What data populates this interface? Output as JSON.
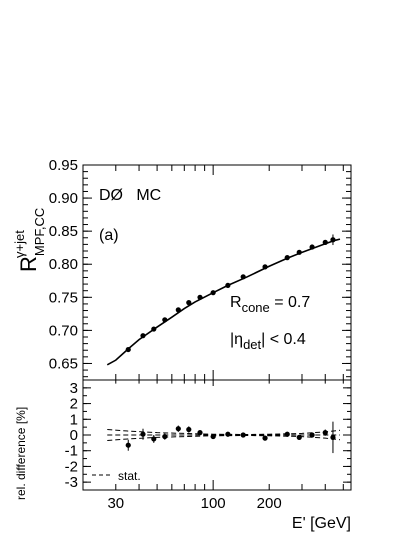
{
  "chart_data": [
    {
      "type": "scatter",
      "panel": "main",
      "x_scale": "log",
      "xlim": [
        20,
        550
      ],
      "ylim": [
        0.625,
        0.95
      ],
      "ylabel_main": "R",
      "ylabel_super": "γ+jet",
      "ylabel_sub": "MPF,CC",
      "yticks": [
        "0.65",
        "0.70",
        "0.75",
        "0.80",
        "0.85",
        "0.90",
        "0.95"
      ],
      "ytick_values": [
        0.65,
        0.7,
        0.75,
        0.8,
        0.85,
        0.9,
        0.95
      ],
      "annotations": {
        "experiment": "DØ   MC",
        "panel_label": "(a)",
        "rcone_main": "R",
        "rcone_sub": "cone",
        "rcone_value": " = 0.7",
        "eta_bar_left": "|",
        "eta_main": "η",
        "eta_sub": "det",
        "eta_value": "| < 0.4"
      },
      "points": [
        {
          "x": 35,
          "y": 0.671,
          "err": 0.003
        },
        {
          "x": 42,
          "y": 0.692,
          "err": 0.002
        },
        {
          "x": 48,
          "y": 0.702,
          "err": 0.002
        },
        {
          "x": 55,
          "y": 0.716,
          "err": 0.002
        },
        {
          "x": 65,
          "y": 0.731,
          "err": 0.002
        },
        {
          "x": 74,
          "y": 0.742,
          "err": 0.002
        },
        {
          "x": 85,
          "y": 0.75,
          "err": 0.002
        },
        {
          "x": 100,
          "y": 0.757,
          "err": 0.002
        },
        {
          "x": 120,
          "y": 0.768,
          "err": 0.002
        },
        {
          "x": 145,
          "y": 0.781,
          "err": 0.002
        },
        {
          "x": 190,
          "y": 0.796,
          "err": 0.002
        },
        {
          "x": 250,
          "y": 0.81,
          "err": 0.002
        },
        {
          "x": 290,
          "y": 0.818,
          "err": 0.002
        },
        {
          "x": 340,
          "y": 0.826,
          "err": 0.002
        },
        {
          "x": 400,
          "y": 0.833,
          "err": 0.003
        },
        {
          "x": 440,
          "y": 0.837,
          "err": 0.008
        }
      ],
      "fit_curve": {
        "x": [
          27,
          30,
          35,
          40,
          50,
          60,
          70,
          80,
          100,
          120,
          150,
          200,
          250,
          300,
          350,
          400,
          450,
          480
        ],
        "y": [
          0.648,
          0.655,
          0.672,
          0.686,
          0.705,
          0.72,
          0.733,
          0.743,
          0.757,
          0.768,
          0.78,
          0.797,
          0.809,
          0.818,
          0.825,
          0.831,
          0.836,
          0.838
        ]
      }
    },
    {
      "type": "scatter",
      "panel": "ratio",
      "x_scale": "log",
      "xlim": [
        20,
        550
      ],
      "ylim": [
        -3.5,
        3.5
      ],
      "ylabel": "rel. difference [%]",
      "xlabel": "E' [GeV]",
      "yticks": [
        "-3",
        "-2",
        "-1",
        "0",
        "1",
        "2",
        "3"
      ],
      "ytick_values": [
        -3,
        -2,
        -1,
        0,
        1,
        2,
        3
      ],
      "xticks": [
        "30",
        "100",
        "200"
      ],
      "xtick_values": [
        30,
        100,
        200
      ],
      "legend": {
        "line_label": "stat."
      },
      "points": [
        {
          "x": 35,
          "y": -0.65,
          "err": 0.35
        },
        {
          "x": 42,
          "y": 0.05,
          "err": 0.35
        },
        {
          "x": 48,
          "y": -0.25,
          "err": 0.25
        },
        {
          "x": 55,
          "y": -0.1,
          "err": 0.2
        },
        {
          "x": 65,
          "y": 0.4,
          "err": 0.2
        },
        {
          "x": 74,
          "y": 0.35,
          "err": 0.2
        },
        {
          "x": 85,
          "y": 0.15,
          "err": 0.15
        },
        {
          "x": 100,
          "y": -0.1,
          "err": 0.15
        },
        {
          "x": 120,
          "y": 0.05,
          "err": 0.15
        },
        {
          "x": 145,
          "y": 0.0,
          "err": 0.15
        },
        {
          "x": 190,
          "y": -0.2,
          "err": 0.15
        },
        {
          "x": 250,
          "y": 0.05,
          "err": 0.15
        },
        {
          "x": 290,
          "y": -0.15,
          "err": 0.15
        },
        {
          "x": 340,
          "y": 0.0,
          "err": 0.15
        },
        {
          "x": 400,
          "y": 0.15,
          "err": 0.2
        },
        {
          "x": 440,
          "y": -0.15,
          "err": 1.0
        }
      ],
      "band_upper": {
        "x": [
          27,
          35,
          50,
          70,
          100,
          150,
          200,
          300,
          400,
          480
        ],
        "y": [
          0.35,
          0.25,
          0.15,
          0.1,
          0.05,
          0.03,
          0.05,
          0.1,
          0.2,
          0.3
        ]
      },
      "band_lower": {
        "x": [
          27,
          35,
          50,
          70,
          100,
          150,
          200,
          300,
          400,
          480
        ],
        "y": [
          -0.35,
          -0.25,
          -0.15,
          -0.1,
          -0.05,
          -0.03,
          -0.05,
          -0.1,
          -0.2,
          -0.3
        ]
      }
    }
  ]
}
